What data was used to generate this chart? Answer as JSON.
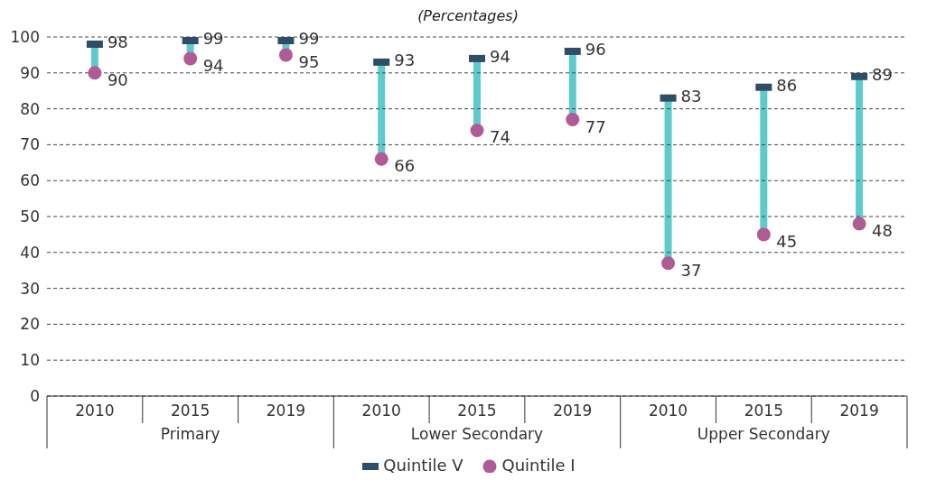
{
  "chart_data": {
    "type": "scatter",
    "subtitle": "(Percentages)",
    "categories": [
      "2010",
      "2015",
      "2019",
      "2010",
      "2015",
      "2019",
      "2010",
      "2015",
      "2019"
    ],
    "annotations": [
      "Primary",
      "Lower Secondary",
      "Upper Secondary"
    ],
    "series": [
      {
        "name": "Quintile V",
        "type": "scatter",
        "marker": "square",
        "color": "#2e4d66",
        "values": [
          98,
          99,
          99,
          93,
          94,
          96,
          83,
          86,
          89
        ],
        "value_labels": [
          "98",
          "99",
          "99",
          "93",
          "94",
          "96",
          "83",
          "86",
          "89"
        ]
      },
      {
        "name": "Quintile I",
        "type": "scatter",
        "marker": "circle",
        "color": "#b05a96",
        "values": [
          90,
          94,
          95,
          66,
          74,
          77,
          37,
          45,
          48
        ],
        "value_labels": [
          "90",
          "94",
          "95",
          "66",
          "74",
          "77",
          "37",
          "45",
          "48"
        ]
      }
    ],
    "ylim": [
      0,
      100
    ],
    "yticks": [
      0,
      10,
      20,
      30,
      40,
      50,
      60,
      70,
      80,
      90,
      100
    ],
    "grid": "y",
    "legend": "bottom"
  }
}
